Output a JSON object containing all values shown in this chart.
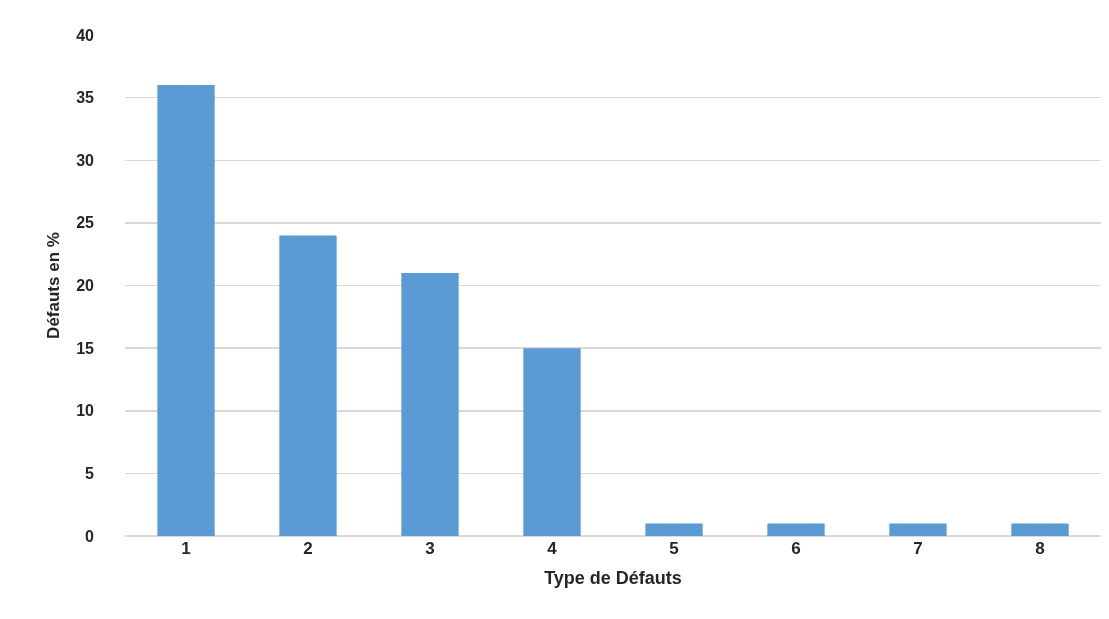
{
  "chart_data": {
    "type": "bar",
    "xlabel": "Type de Défauts",
    "ylabel": "Défauts en %",
    "categories": [
      "1",
      "2",
      "3",
      "4",
      "5",
      "6",
      "7",
      "8"
    ],
    "values": [
      36,
      24,
      21,
      15,
      1,
      1,
      1,
      1
    ],
    "color": "#5b9bd5",
    "ylim": [
      0,
      40
    ],
    "yticks": [
      0,
      5,
      10,
      15,
      20,
      25,
      30,
      35,
      40
    ],
    "grid": "y"
  }
}
